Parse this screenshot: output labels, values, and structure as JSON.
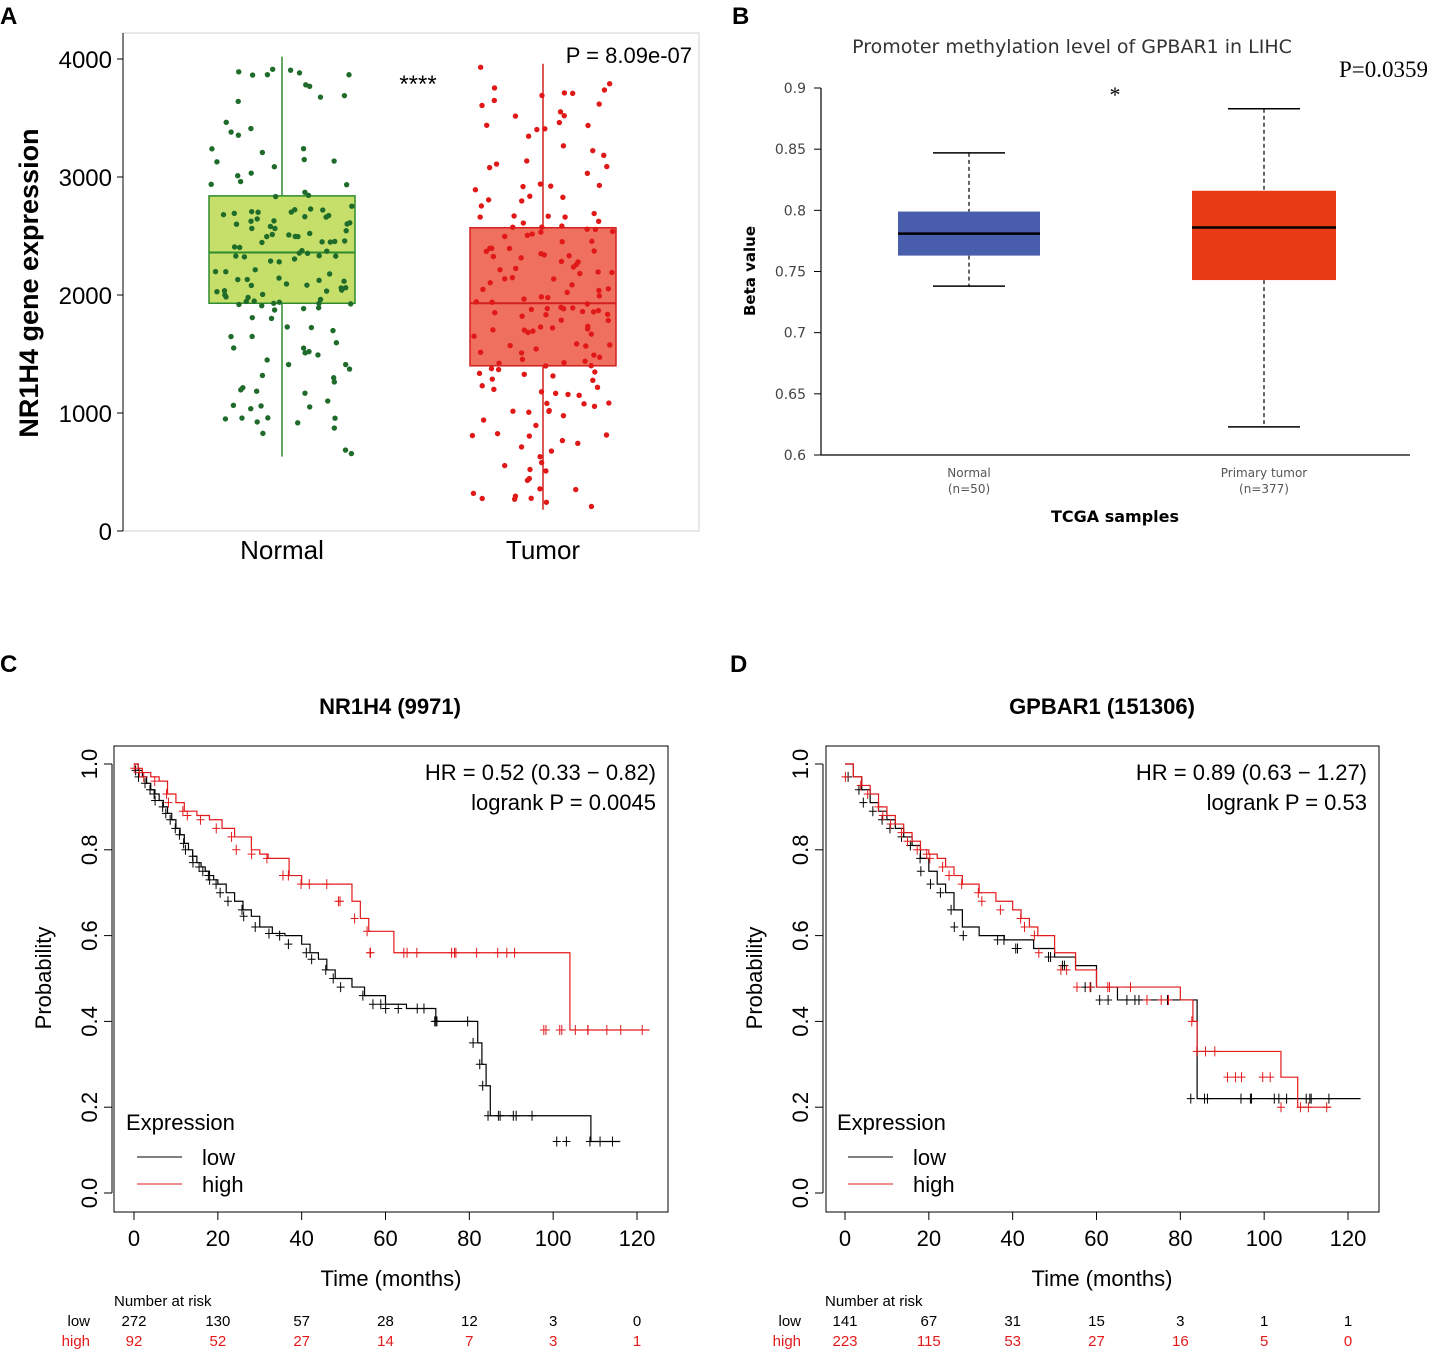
{
  "chart_data": [
    {
      "panel": "A",
      "type": "box",
      "title": "",
      "ylabel": "NR1H4 gene expression",
      "ylim": [
        0,
        4200
      ],
      "yticks": [
        0,
        1000,
        2000,
        3000,
        4000
      ],
      "categories": [
        "Normal",
        "Tumor"
      ],
      "annotation": "****",
      "pvalue_label": "P = 8.09e-07",
      "colors": {
        "Normal_fill": "#c6df6b",
        "Normal_line": "#2e8b2e",
        "Normal_points": "#1e6b2a",
        "Tumor_fill": "#f07060",
        "Tumor_line": "#d32020",
        "Tumor_points": "#e01818"
      },
      "boxes": [
        {
          "name": "Normal",
          "min": 630,
          "q1": 1930,
          "median": 2360,
          "q3": 2840,
          "max": 4020
        },
        {
          "name": "Tumor",
          "min": 180,
          "q1": 1400,
          "median": 1930,
          "q3": 2570,
          "max": 3960
        }
      ]
    },
    {
      "panel": "B",
      "type": "box",
      "title": "Promoter methylation level of GPBAR1 in LIHC",
      "xlabel": "TCGA samples",
      "ylabel": "Beta value",
      "ylim": [
        0.6,
        0.9
      ],
      "yticks": [
        0.6,
        0.65,
        0.7,
        0.75,
        0.8,
        0.85,
        0.9
      ],
      "categories": [
        "Normal",
        "Primary tumor"
      ],
      "category_counts": [
        "(n=50)",
        "(n=377)"
      ],
      "annotation": "*",
      "pvalue_label": "P=0.0359",
      "colors": {
        "Normal": "#4a5eae",
        "Primary tumor": "#e83a14"
      },
      "boxes": [
        {
          "name": "Normal",
          "min": 0.738,
          "q1": 0.763,
          "median": 0.781,
          "q3": 0.799,
          "max": 0.847
        },
        {
          "name": "Primary tumor",
          "min": 0.623,
          "q1": 0.743,
          "median": 0.786,
          "q3": 0.816,
          "max": 0.883
        }
      ]
    },
    {
      "panel": "C",
      "type": "line",
      "subtype": "kaplan-meier",
      "title": "NR1H4 (9971)",
      "xlabel": "Time (months)",
      "ylabel": "Probability",
      "xlim": [
        0,
        125
      ],
      "ylim": [
        0,
        1
      ],
      "xticks": [
        0,
        20,
        40,
        60,
        80,
        100,
        120
      ],
      "yticks": [
        "0.0",
        "0.2",
        "0.4",
        "0.6",
        "0.8",
        "1.0"
      ],
      "hr_text": "HR = 0.52 (0.33 − 0.82)",
      "logrank_text": "logrank P = 0.0045",
      "legend_title": "Expression",
      "series": [
        {
          "name": "low",
          "color": "#000000",
          "x": [
            0,
            1,
            2,
            3,
            4,
            5,
            6,
            7,
            8,
            9,
            10,
            11,
            12,
            13,
            14,
            15,
            16,
            17,
            18,
            19,
            20,
            22,
            24,
            26,
            28,
            30,
            33,
            36,
            40,
            42,
            44,
            46,
            48,
            52,
            55,
            60,
            65,
            70,
            72,
            78,
            80,
            82,
            83,
            84,
            85,
            90,
            100,
            109,
            116
          ],
          "y": [
            1.0,
            0.985,
            0.97,
            0.955,
            0.94,
            0.93,
            0.915,
            0.9,
            0.885,
            0.87,
            0.85,
            0.835,
            0.815,
            0.8,
            0.785,
            0.77,
            0.76,
            0.75,
            0.74,
            0.73,
            0.72,
            0.7,
            0.68,
            0.66,
            0.645,
            0.62,
            0.605,
            0.6,
            0.58,
            0.56,
            0.545,
            0.52,
            0.5,
            0.48,
            0.46,
            0.44,
            0.43,
            0.43,
            0.4,
            0.4,
            0.4,
            0.35,
            0.3,
            0.25,
            0.18,
            0.18,
            0.18,
            0.12,
            0.12
          ]
        },
        {
          "name": "high",
          "color": "#e31a1c",
          "x": [
            0,
            1,
            2,
            4,
            6,
            8,
            10,
            12,
            15,
            18,
            21,
            24,
            28,
            30,
            32,
            37,
            40,
            46,
            52,
            54,
            56,
            62,
            70,
            80,
            91,
            104,
            123
          ],
          "y": [
            1.0,
            0.99,
            0.98,
            0.97,
            0.96,
            0.93,
            0.91,
            0.89,
            0.88,
            0.87,
            0.85,
            0.83,
            0.8,
            0.79,
            0.78,
            0.74,
            0.72,
            0.72,
            0.68,
            0.64,
            0.61,
            0.56,
            0.56,
            0.56,
            0.56,
            0.38,
            0.38
          ]
        }
      ],
      "risk_table": {
        "header": "Number at risk",
        "times": [
          0,
          20,
          40,
          60,
          80,
          100,
          120
        ],
        "rows": [
          {
            "label": "low",
            "color": "#000000",
            "values": [
              "272",
              "130",
              "57",
              "28",
              "12",
              "3",
              "0"
            ]
          },
          {
            "label": "high",
            "color": "#e31a1c",
            "values": [
              "92",
              "52",
              "27",
              "14",
              "7",
              "3",
              "1"
            ]
          }
        ]
      }
    },
    {
      "panel": "D",
      "type": "line",
      "subtype": "kaplan-meier",
      "title": "GPBAR1 (151306)",
      "xlabel": "Time (months)",
      "ylabel": "Probability",
      "xlim": [
        0,
        125
      ],
      "ylim": [
        0,
        1
      ],
      "xticks": [
        0,
        20,
        40,
        60,
        80,
        100,
        120
      ],
      "yticks": [
        "0.0",
        "0.2",
        "0.4",
        "0.6",
        "0.8",
        "1.0"
      ],
      "hr_text": "HR = 0.89 (0.63 − 1.27)",
      "logrank_text": "logrank P = 0.53",
      "legend_title": "Expression",
      "series": [
        {
          "name": "low",
          "color": "#000000",
          "x": [
            0,
            2,
            4,
            6,
            8,
            10,
            12,
            14,
            16,
            18,
            20,
            22,
            24,
            26,
            28,
            32,
            38,
            45,
            50,
            55,
            60,
            65,
            70,
            80,
            84,
            90,
            100,
            110,
            123
          ],
          "y": [
            1.0,
            0.97,
            0.94,
            0.91,
            0.89,
            0.87,
            0.85,
            0.83,
            0.81,
            0.78,
            0.75,
            0.72,
            0.7,
            0.66,
            0.62,
            0.6,
            0.59,
            0.57,
            0.55,
            0.53,
            0.48,
            0.45,
            0.45,
            0.45,
            0.22,
            0.22,
            0.22,
            0.22,
            0.22
          ]
        },
        {
          "name": "high",
          "color": "#e31a1c",
          "x": [
            0,
            2,
            4,
            6,
            8,
            10,
            12,
            14,
            16,
            18,
            20,
            22,
            24,
            26,
            28,
            32,
            36,
            40,
            42,
            44,
            46,
            50,
            55,
            60,
            70,
            80,
            83,
            84,
            90,
            104,
            108,
            116
          ],
          "y": [
            1.0,
            0.97,
            0.95,
            0.93,
            0.9,
            0.88,
            0.86,
            0.84,
            0.82,
            0.8,
            0.79,
            0.78,
            0.76,
            0.74,
            0.72,
            0.7,
            0.68,
            0.66,
            0.64,
            0.62,
            0.6,
            0.56,
            0.52,
            0.48,
            0.48,
            0.45,
            0.4,
            0.33,
            0.33,
            0.27,
            0.2,
            0.2
          ]
        }
      ],
      "risk_table": {
        "header": "Number at risk",
        "times": [
          0,
          20,
          40,
          60,
          80,
          100,
          120
        ],
        "rows": [
          {
            "label": "low",
            "color": "#000000",
            "values": [
              "141",
              "67",
              "31",
              "15",
              "3",
              "1",
              "1"
            ]
          },
          {
            "label": "high",
            "color": "#e31a1c",
            "values": [
              "223",
              "115",
              "53",
              "27",
              "16",
              "5",
              "0"
            ]
          }
        ]
      }
    }
  ]
}
